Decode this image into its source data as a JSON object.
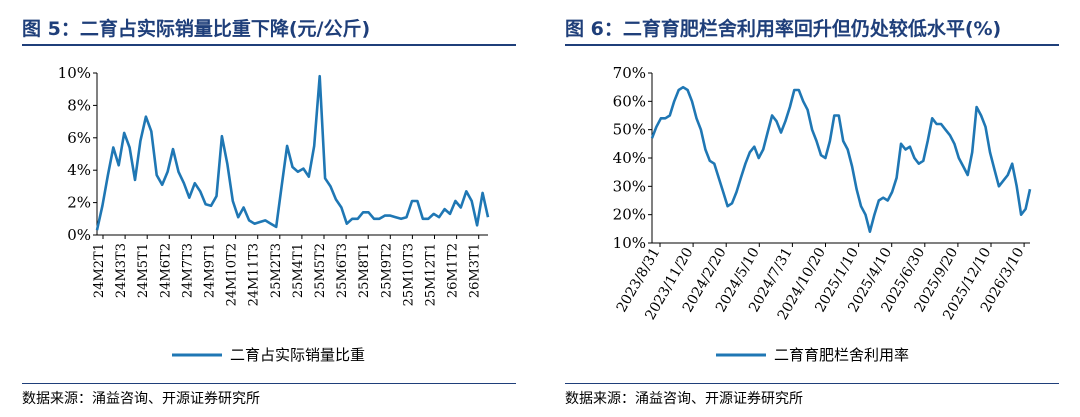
{
  "chart_data": [
    {
      "type": "line",
      "title": "图 5：二育占实际销量比重下降(元/公斤)",
      "series": [
        {
          "name": "二育占实际销量比重",
          "color": "#1f77b4",
          "values": [
            0.3,
            1.8,
            3.7,
            5.4,
            4.3,
            6.3,
            5.4,
            3.4,
            5.8,
            7.3,
            6.4,
            3.7,
            3.1,
            3.9,
            5.3,
            3.9,
            3.2,
            2.3,
            3.2,
            2.7,
            1.9,
            1.8,
            2.4,
            6.1,
            4.4,
            2.1,
            1.1,
            1.7,
            0.9,
            0.7,
            0.8,
            0.9,
            0.7,
            0.5,
            3.0,
            5.5,
            4.2,
            3.9,
            4.1,
            3.6,
            5.5,
            9.8,
            3.5,
            3.0,
            2.2,
            1.7,
            0.7,
            1.0,
            1.0,
            1.4,
            1.4,
            1.0,
            1.0,
            1.2,
            1.2,
            1.1,
            1.0,
            1.1,
            2.1,
            2.1,
            1.0,
            1.0,
            1.3,
            1.1,
            1.6,
            1.3,
            2.1,
            1.7,
            2.7,
            2.1,
            0.6,
            2.6,
            1.1
          ]
        }
      ],
      "xlabels": [
        "24M2T1",
        "24M3T3",
        "24M5T1",
        "24M6T2",
        "24M7T3",
        "24M9T1",
        "24M10T2",
        "24M11T3",
        "25M2T3",
        "25M4T1",
        "25M5T2",
        "25M6T3",
        "25M8T1",
        "25M9T2",
        "25M10T3",
        "25M12T1",
        "26M1T2",
        "26M3T1"
      ],
      "yticks": [
        "0%",
        "2%",
        "4%",
        "6%",
        "8%",
        "10%"
      ],
      "ylim": [
        0,
        10
      ],
      "legend": "bottom-center",
      "source": "数据来源：涌益咨询、开源证券研究所"
    },
    {
      "type": "line",
      "title": "图 6：二育育肥栏舍利用率回升但仍处较低水平(%)",
      "series": [
        {
          "name": "二育育肥栏舍利用率",
          "color": "#1f77b4",
          "values": [
            47,
            51,
            54,
            54,
            55,
            60,
            64,
            65,
            64,
            60,
            54,
            50,
            43,
            39,
            38,
            33,
            28,
            23,
            24,
            28,
            33,
            38,
            42,
            44,
            40,
            43,
            49,
            55,
            53,
            49,
            53,
            58,
            64,
            64,
            60,
            57,
            50,
            46,
            41,
            40,
            46,
            55,
            55,
            46,
            43,
            37,
            29,
            23,
            20,
            14,
            20,
            25,
            26,
            25,
            28,
            33,
            45,
            43,
            44,
            40,
            38,
            39,
            46,
            54,
            52,
            52,
            50,
            48,
            45,
            40,
            37,
            34,
            42,
            58,
            55,
            51,
            42,
            36,
            30,
            32,
            34,
            38,
            30,
            20,
            22,
            29
          ]
        }
      ],
      "xlabels": [
        "2023/8/31",
        "2023/11/20",
        "2024/2/20",
        "2024/5/10",
        "2024/7/31",
        "2024/10/20",
        "2025/1/10",
        "2025/4/10",
        "2025/6/30",
        "2025/9/20",
        "2025/12/10",
        "2026/3/10"
      ],
      "yticks": [
        "10%",
        "20%",
        "30%",
        "40%",
        "50%",
        "60%",
        "70%"
      ],
      "ylim": [
        10,
        70
      ],
      "legend": "bottom-center",
      "source": "数据来源：涌益咨询、开源证券研究所"
    }
  ]
}
